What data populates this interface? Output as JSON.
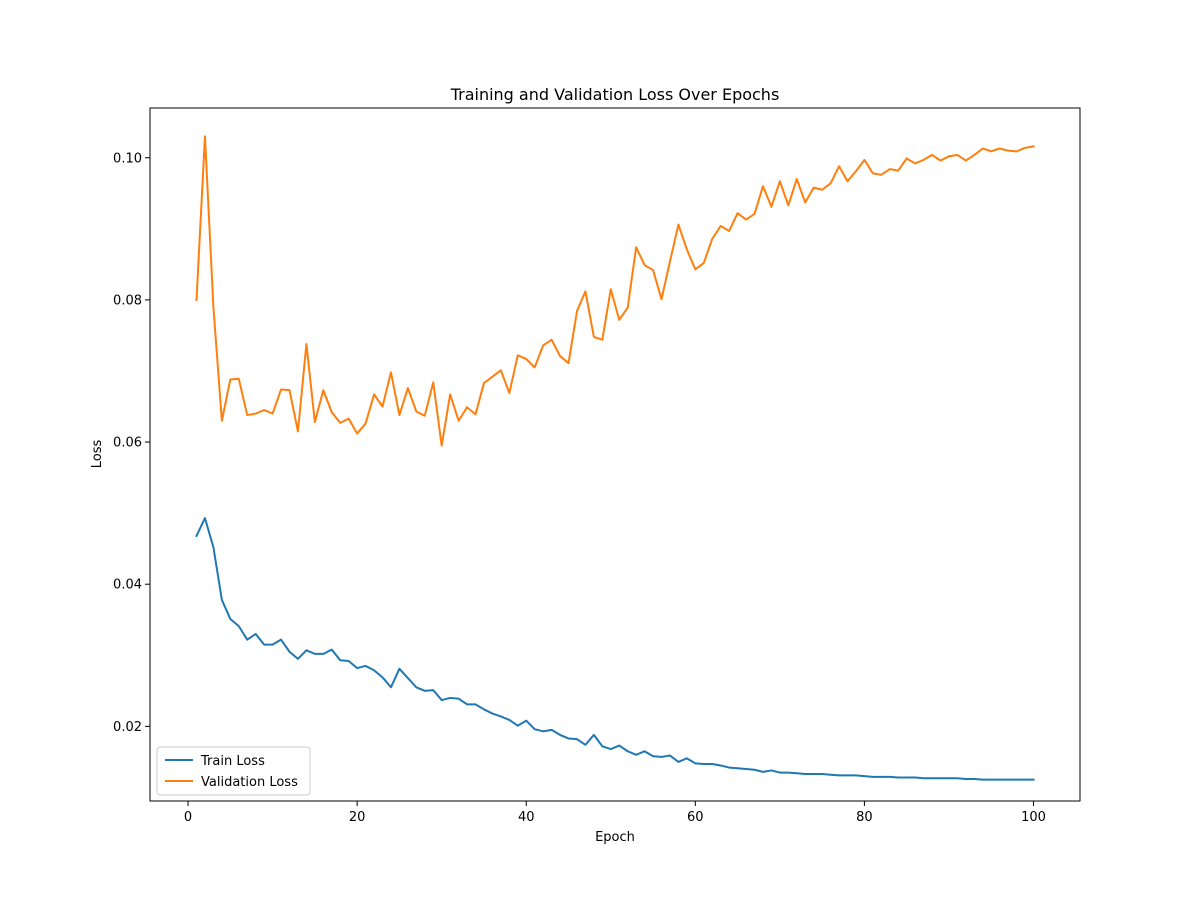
{
  "chart_data": {
    "type": "line",
    "title": "Training and Validation Loss Over Epochs",
    "xlabel": "Epoch",
    "ylabel": "Loss",
    "xlim": [
      -4.5,
      105.5
    ],
    "ylim": [
      0.0095,
      0.107
    ],
    "xticks": [
      0,
      20,
      40,
      60,
      80,
      100
    ],
    "yticks": [
      0.02,
      0.04,
      0.06,
      0.08,
      0.1
    ],
    "ytick_labels": [
      "0.02",
      "0.04",
      "0.06",
      "0.08",
      "0.10"
    ],
    "grid": false,
    "legend_position": "lower-left",
    "x": [
      1,
      2,
      3,
      4,
      5,
      6,
      7,
      8,
      9,
      10,
      11,
      12,
      13,
      14,
      15,
      16,
      17,
      18,
      19,
      20,
      21,
      22,
      23,
      24,
      25,
      26,
      27,
      28,
      29,
      30,
      31,
      32,
      33,
      34,
      35,
      36,
      37,
      38,
      39,
      40,
      41,
      42,
      43,
      44,
      45,
      46,
      47,
      48,
      49,
      50,
      51,
      52,
      53,
      54,
      55,
      56,
      57,
      58,
      59,
      60,
      61,
      62,
      63,
      64,
      65,
      66,
      67,
      68,
      69,
      70,
      71,
      72,
      73,
      74,
      75,
      76,
      77,
      78,
      79,
      80,
      81,
      82,
      83,
      84,
      85,
      86,
      87,
      88,
      89,
      90,
      91,
      92,
      93,
      94,
      95,
      96,
      97,
      98,
      99,
      100
    ],
    "series": [
      {
        "name": "Train Loss",
        "color": "#1f77b4",
        "values": [
          0.0468,
          0.0493,
          0.0452,
          0.0378,
          0.0351,
          0.0341,
          0.0322,
          0.033,
          0.0315,
          0.0315,
          0.0322,
          0.0305,
          0.0295,
          0.0307,
          0.0302,
          0.0302,
          0.0308,
          0.0293,
          0.0292,
          0.0282,
          0.0285,
          0.0279,
          0.0269,
          0.0255,
          0.0281,
          0.0268,
          0.0255,
          0.025,
          0.0251,
          0.0237,
          0.024,
          0.0239,
          0.0231,
          0.0231,
          0.0224,
          0.0218,
          0.0214,
          0.0209,
          0.0201,
          0.0208,
          0.0196,
          0.0193,
          0.0195,
          0.0188,
          0.0183,
          0.0182,
          0.0174,
          0.0188,
          0.0172,
          0.0168,
          0.0173,
          0.0165,
          0.016,
          0.0165,
          0.0158,
          0.0157,
          0.0159,
          0.015,
          0.0155,
          0.0148,
          0.0147,
          0.0147,
          0.0145,
          0.0142,
          0.0141,
          0.014,
          0.0139,
          0.0136,
          0.0138,
          0.0135,
          0.0135,
          0.0134,
          0.0133,
          0.0133,
          0.0133,
          0.0132,
          0.0131,
          0.0131,
          0.0131,
          0.013,
          0.0129,
          0.0129,
          0.0129,
          0.0128,
          0.0128,
          0.0128,
          0.0127,
          0.0127,
          0.0127,
          0.0127,
          0.0127,
          0.0126,
          0.0126,
          0.0125,
          0.0125,
          0.0125,
          0.0125,
          0.0125,
          0.0125,
          0.0125
        ]
      },
      {
        "name": "Validation Loss",
        "color": "#ff7f0e",
        "values": [
          0.08,
          0.103,
          0.079,
          0.063,
          0.0688,
          0.0689,
          0.0638,
          0.064,
          0.0645,
          0.064,
          0.0674,
          0.0673,
          0.0615,
          0.0738,
          0.0628,
          0.0673,
          0.0642,
          0.0627,
          0.0633,
          0.0612,
          0.0626,
          0.0667,
          0.065,
          0.0698,
          0.0638,
          0.0676,
          0.0643,
          0.0637,
          0.0684,
          0.0595,
          0.0667,
          0.063,
          0.0649,
          0.0639,
          0.0683,
          0.0692,
          0.0701,
          0.0669,
          0.0722,
          0.0717,
          0.0705,
          0.0736,
          0.0744,
          0.0721,
          0.0711,
          0.0784,
          0.0812,
          0.0748,
          0.0744,
          0.0815,
          0.0772,
          0.0789,
          0.0874,
          0.0849,
          0.0842,
          0.0801,
          0.0854,
          0.0906,
          0.0871,
          0.0843,
          0.0852,
          0.0886,
          0.0904,
          0.0897,
          0.0922,
          0.0913,
          0.0921,
          0.096,
          0.0931,
          0.0967,
          0.0933,
          0.097,
          0.0937,
          0.0958,
          0.0955,
          0.0964,
          0.0988,
          0.0967,
          0.0981,
          0.0997,
          0.0978,
          0.0976,
          0.0984,
          0.0982,
          0.0999,
          0.0992,
          0.0997,
          0.1004,
          0.0996,
          0.1002,
          0.1004,
          0.0996,
          0.1004,
          0.1013,
          0.1009,
          0.1013,
          0.101,
          0.1009,
          0.1014,
          0.1016
        ]
      }
    ]
  }
}
